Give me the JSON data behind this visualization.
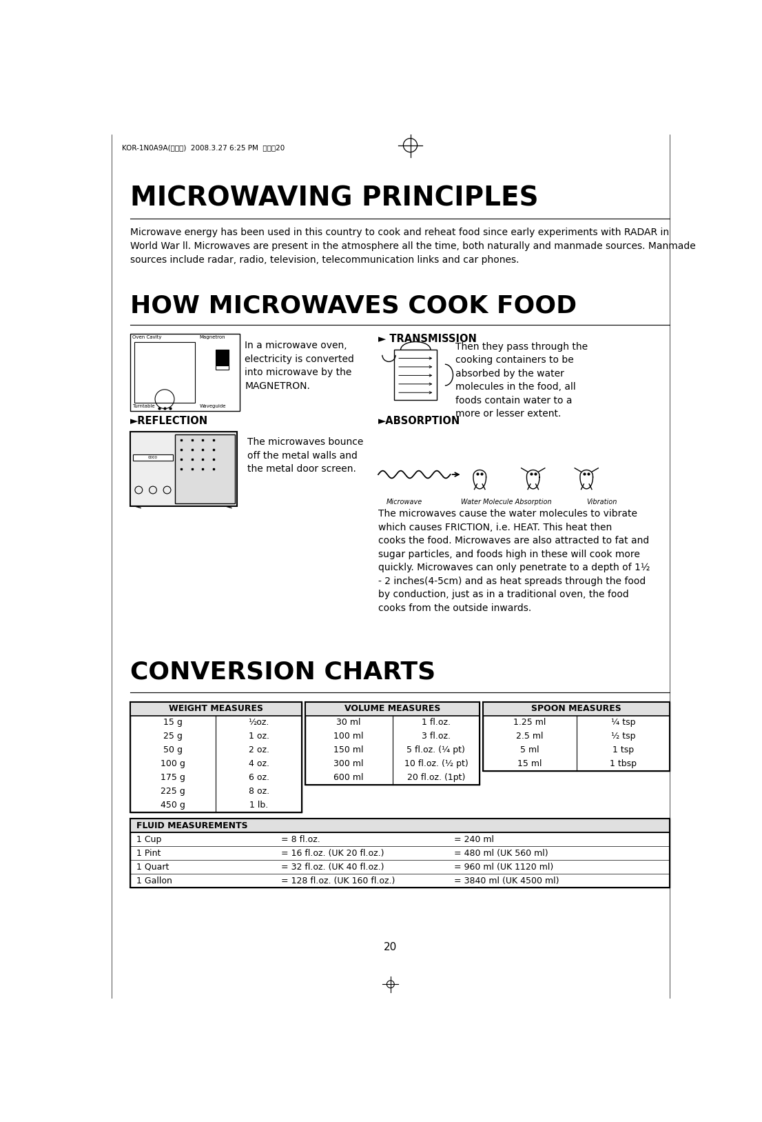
{
  "bg_color": "#ffffff",
  "page_width": 11.06,
  "page_height": 16.27,
  "header_text": "KOR-1N0A9A(영기분)  2008.3.27 6:25 PM  페이지20",
  "title1": "MICROWAVING PRINCIPLES",
  "intro_text": "Microwave energy has been used in this country to cook and reheat food since early experiments with RADAR in\nWorld War ll. Microwaves are present in the atmosphere all the time, both naturally and manmade sources. Manmade\nsources include radar, radio, television, telecommunication links and car phones.",
  "title2": "HOW MICROWAVES COOK FOOD",
  "magnetron_text": "In a microwave oven,\nelectricity is converted\ninto microwave by the\nMAGNETRON.",
  "transmission_label": "► TRANSMISSION",
  "transmission_text": "Then they pass through the\ncooking containers to be\nabsorbed by the water\nmolecules in the food, all\nfoods contain water to a\nmore or lesser extent.",
  "reflection_label": "►REFLECTION",
  "reflection_text": "The microwaves bounce\noff the metal walls and\nthe metal door screen.",
  "absorption_label": "►ABSORPTION",
  "absorption_subtext_items": [
    "Microwave",
    "Water Molecule Absorption",
    "Vibration"
  ],
  "absorption_body": "The microwaves cause the water molecules to vibrate\nwhich causes FRICTION, i.e. HEAT. This heat then\ncooks the food. Microwaves are also attracted to fat and\nsugar particles, and foods high in these will cook more\nquickly. Microwaves can only penetrate to a depth of 1½\n- 2 inches(4-5cm) and as heat spreads through the food\nby conduction, just as in a traditional oven, the food\ncooks from the outside inwards.",
  "title3": "CONVERSION CHARTS",
  "weight_header": "WEIGHT MEASURES",
  "weight_rows": [
    [
      "15 g",
      "½oz."
    ],
    [
      "25 g",
      "1 oz."
    ],
    [
      "50 g",
      "2 oz."
    ],
    [
      "100 g",
      "4 oz."
    ],
    [
      "175 g",
      "6 oz."
    ],
    [
      "225 g",
      "8 oz."
    ],
    [
      "450 g",
      "1 lb."
    ]
  ],
  "volume_header": "VOLUME MEASURES",
  "volume_rows": [
    [
      "30 ml",
      "1 fl.oz."
    ],
    [
      "100 ml",
      "3 fl.oz."
    ],
    [
      "150 ml",
      "5 fl.oz. (¼ pt)"
    ],
    [
      "300 ml",
      "10 fl.oz. (½ pt)"
    ],
    [
      "600 ml",
      "20 fl.oz. (1pt)"
    ]
  ],
  "spoon_header": "SPOON MEASURES",
  "spoon_rows": [
    [
      "1.25 ml",
      "¼ tsp"
    ],
    [
      "2.5 ml",
      "½ tsp"
    ],
    [
      "5 ml",
      "1 tsp"
    ],
    [
      "15 ml",
      "1 tbsp"
    ]
  ],
  "fluid_header": "FLUID MEASUREMENTS",
  "fluid_rows": [
    [
      "1 Cup",
      "= 8 fl.oz.",
      "= 240 ml"
    ],
    [
      "1 Pint",
      "= 16 fl.oz. (UK 20 fl.oz.)",
      "= 480 ml (UK 560 ml)"
    ],
    [
      "1 Quart",
      "= 32 fl.oz. (UK 40 fl.oz.)",
      "= 960 ml (UK 1120 ml)"
    ],
    [
      "1 Gallon",
      "= 128 fl.oz. (UK 160 fl.oz.)",
      "= 3840 ml (UK 4500 ml)"
    ]
  ],
  "page_number": "20",
  "ml": 0.68,
  "mr": 0.68,
  "text_color": "#000000",
  "body_fontsize": 10.0,
  "title1_fontsize": 28,
  "title2_fontsize": 26,
  "title3_fontsize": 26,
  "header_fontsize": 7.5,
  "table_header_fontsize": 9.0,
  "table_body_fontsize": 9.0,
  "label_fontsize": 10.5,
  "small_fontsize": 7.0
}
